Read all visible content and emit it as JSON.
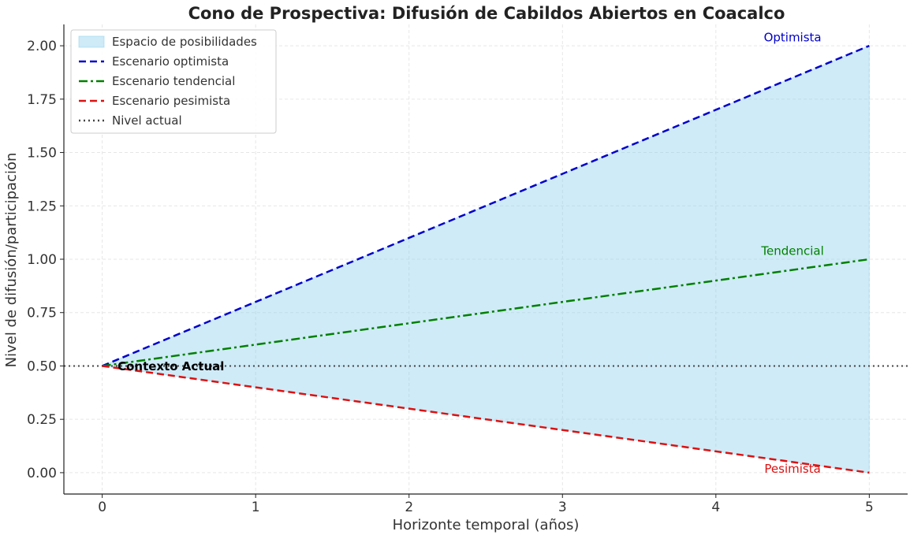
{
  "chart_data": {
    "type": "line",
    "title": "Cono de Prospectiva: Difusión de Cabildos Abiertos en Coacalco",
    "xlabel": "Horizonte temporal (años)",
    "ylabel": "Nivel de difusión/participación",
    "xlim": [
      -0.25,
      5.25
    ],
    "ylim": [
      -0.1,
      2.1
    ],
    "xticks": [
      0,
      1,
      2,
      3,
      4,
      5
    ],
    "xtick_labels": [
      "0",
      "1",
      "2",
      "3",
      "4",
      "5"
    ],
    "yticks": [
      0,
      0.25,
      0.5,
      0.75,
      1.0,
      1.25,
      1.5,
      1.75,
      2.0
    ],
    "ytick_labels": [
      "0.00",
      "0.25",
      "0.50",
      "0.75",
      "1.00",
      "1.25",
      "1.50",
      "1.75",
      "2.00"
    ],
    "grid": true,
    "legend_position": "top-left",
    "fill": {
      "name": "Espacio de posibilidades",
      "color": "#87ceeb",
      "x": [
        0,
        5
      ],
      "upper": [
        0.5,
        2.0
      ],
      "lower": [
        0.5,
        0.0
      ]
    },
    "series": [
      {
        "name": "Escenario optimista",
        "x": [
          0,
          5
        ],
        "y": [
          0.5,
          2.0
        ],
        "color": "#0000cc",
        "dash": "dashed"
      },
      {
        "name": "Escenario tendencial",
        "x": [
          0,
          5
        ],
        "y": [
          0.5,
          1.0
        ],
        "color": "#008000",
        "dash": "dashdot"
      },
      {
        "name": "Escenario pesimista",
        "x": [
          0,
          5
        ],
        "y": [
          0.5,
          0.0
        ],
        "color": "#dd1111",
        "dash": "dashed"
      }
    ],
    "hline": {
      "name": "Nivel actual",
      "y": 0.5,
      "color": "#444444",
      "dash": "dotted"
    },
    "annotations": [
      {
        "text": "Optimista",
        "x": 4.5,
        "y": 2.02,
        "color": "#0000cc",
        "bold": false
      },
      {
        "text": "Tendencial",
        "x": 4.5,
        "y": 1.02,
        "color": "#008000",
        "bold": false
      },
      {
        "text": "Pesimista",
        "x": 4.5,
        "y": 0.0,
        "color": "#dd1111",
        "bold": false
      },
      {
        "text": "Contexto Actual",
        "x": 0.1,
        "y": 0.5,
        "color": "#000000",
        "bold": true
      }
    ]
  }
}
